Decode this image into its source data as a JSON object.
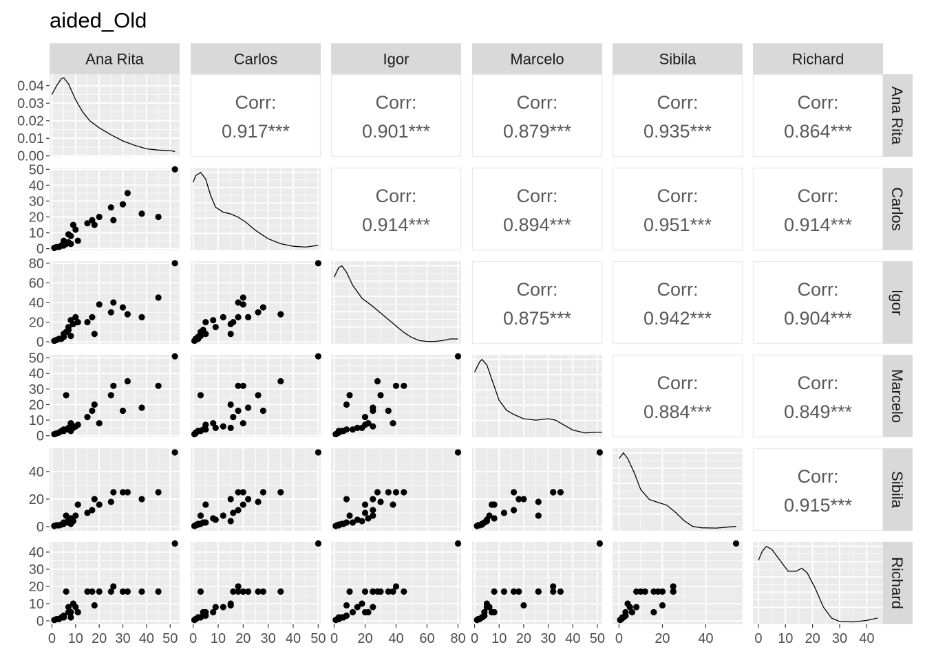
{
  "title": "aided_Old",
  "variables": [
    "Ana Rita",
    "Carlos",
    "Igor",
    "Marcelo",
    "Sibila",
    "Richard"
  ],
  "corr_label": "Corr:",
  "chart_data": {
    "type": "scatter-matrix",
    "title": "aided_Old",
    "upper_panels": "correlation",
    "diagonal_panels": "density",
    "lower_panels": "scatter",
    "background": "#EBEBEB",
    "grid": true,
    "correlations": [
      {
        "row": "Ana Rita",
        "col": "Carlos",
        "label": "0.917***"
      },
      {
        "row": "Ana Rita",
        "col": "Igor",
        "label": "0.901***"
      },
      {
        "row": "Ana Rita",
        "col": "Marcelo",
        "label": "0.879***"
      },
      {
        "row": "Ana Rita",
        "col": "Sibila",
        "label": "0.935***"
      },
      {
        "row": "Ana Rita",
        "col": "Richard",
        "label": "0.864***"
      },
      {
        "row": "Carlos",
        "col": "Igor",
        "label": "0.914***"
      },
      {
        "row": "Carlos",
        "col": "Marcelo",
        "label": "0.894***"
      },
      {
        "row": "Carlos",
        "col": "Sibila",
        "label": "0.951***"
      },
      {
        "row": "Carlos",
        "col": "Richard",
        "label": "0.914***"
      },
      {
        "row": "Igor",
        "col": "Marcelo",
        "label": "0.875***"
      },
      {
        "row": "Igor",
        "col": "Sibila",
        "label": "0.942***"
      },
      {
        "row": "Igor",
        "col": "Richard",
        "label": "0.904***"
      },
      {
        "row": "Marcelo",
        "col": "Sibila",
        "label": "0.884***"
      },
      {
        "row": "Marcelo",
        "col": "Richard",
        "label": "0.849***"
      },
      {
        "row": "Sibila",
        "col": "Richard",
        "label": "0.915***"
      }
    ],
    "x_axes": {
      "Ana Rita": {
        "range": [
          -1,
          54
        ],
        "ticks": [
          0,
          10,
          20,
          30,
          40,
          50
        ]
      },
      "Carlos": {
        "range": [
          -1,
          51
        ],
        "ticks": [
          0,
          10,
          20,
          30,
          40,
          50
        ]
      },
      "Igor": {
        "range": [
          -2,
          82
        ],
        "ticks": [
          0,
          20,
          40,
          60,
          80
        ]
      },
      "Marcelo": {
        "range": [
          -1,
          52
        ],
        "ticks": [
          0,
          10,
          20,
          30,
          40,
          50
        ]
      },
      "Sibila": {
        "range": [
          -3,
          57
        ],
        "ticks": [
          0,
          20,
          40
        ]
      },
      "Richard": {
        "range": [
          -2,
          46
        ],
        "ticks": [
          0,
          10,
          20,
          30,
          40
        ]
      }
    },
    "y_axes": {
      "Ana Rita": {
        "range": [
          -0.0005,
          0.0465
        ],
        "ticks": [
          0.0,
          0.01,
          0.02,
          0.03,
          0.04
        ],
        "tick_labels": [
          "0.00",
          "0.01",
          "0.02",
          "0.03",
          "0.04"
        ]
      },
      "Carlos": {
        "range": [
          -1,
          51
        ],
        "ticks": [
          0,
          10,
          20,
          30,
          40,
          50
        ]
      },
      "Igor": {
        "range": [
          -2,
          82
        ],
        "ticks": [
          0,
          20,
          40,
          60,
          80
        ]
      },
      "Marcelo": {
        "range": [
          -1,
          52
        ],
        "ticks": [
          0,
          10,
          20,
          30,
          40,
          50
        ]
      },
      "Sibila": {
        "range": [
          -3,
          57
        ],
        "ticks": [
          0,
          20,
          40
        ]
      },
      "Richard": {
        "range": [
          -2,
          46
        ],
        "ticks": [
          0,
          10,
          20,
          30,
          40
        ]
      }
    },
    "observations": {
      "Ana Rita": [
        1,
        2,
        3,
        4,
        5,
        5,
        6,
        7,
        7,
        8,
        8,
        9,
        10,
        11,
        15,
        17,
        18,
        20,
        25,
        26,
        30,
        32,
        38,
        45,
        52
      ],
      "Carlos": [
        0.5,
        1,
        1,
        2,
        2,
        5,
        3,
        4,
        9,
        3,
        8,
        15,
        12,
        5,
        16,
        18,
        15,
        20,
        26,
        18,
        28,
        35,
        22,
        20,
        50
      ],
      "Igor": [
        1,
        2,
        3,
        3,
        5,
        8,
        10,
        12,
        15,
        6,
        22,
        18,
        25,
        20,
        20,
        25,
        8,
        38,
        30,
        40,
        35,
        28,
        25,
        45,
        80
      ],
      "Marcelo": [
        1,
        1.5,
        2,
        3,
        3,
        4,
        26,
        4,
        5,
        3,
        8,
        5,
        6,
        7,
        12,
        16,
        20,
        8,
        26,
        32,
        16,
        35,
        18,
        32,
        51
      ],
      "Sibila": [
        0.5,
        1,
        1,
        1.5,
        2,
        3,
        8,
        3,
        5,
        2,
        6,
        4,
        8,
        16,
        10,
        12,
        20,
        16,
        18,
        25,
        25,
        25,
        20,
        25,
        54
      ],
      "Richard": [
        0.5,
        1,
        1,
        2,
        2,
        3,
        17,
        5,
        8,
        2,
        5,
        10,
        8,
        5,
        17,
        17,
        9,
        17,
        17,
        20,
        17,
        17,
        17,
        17,
        45
      ]
    },
    "densities": {
      "Ana Rita": [
        [
          0,
          0.035
        ],
        [
          2,
          0.04
        ],
        [
          4,
          0.044
        ],
        [
          5,
          0.0445
        ],
        [
          7,
          0.041
        ],
        [
          10,
          0.032
        ],
        [
          13,
          0.025
        ],
        [
          16,
          0.02
        ],
        [
          20,
          0.016
        ],
        [
          25,
          0.012
        ],
        [
          30,
          0.0085
        ],
        [
          35,
          0.006
        ],
        [
          40,
          0.004
        ],
        [
          45,
          0.0033
        ],
        [
          50,
          0.003
        ],
        [
          52,
          0.0025
        ]
      ],
      "Carlos": [
        [
          0,
          0.04
        ],
        [
          1,
          0.044
        ],
        [
          3,
          0.046
        ],
        [
          5,
          0.042
        ],
        [
          7,
          0.032
        ],
        [
          9,
          0.025
        ],
        [
          12,
          0.022
        ],
        [
          15,
          0.021
        ],
        [
          18,
          0.019
        ],
        [
          21,
          0.016
        ],
        [
          25,
          0.011
        ],
        [
          30,
          0.006
        ],
        [
          35,
          0.003
        ],
        [
          40,
          0.0015
        ],
        [
          45,
          0.001
        ],
        [
          50,
          0.002
        ]
      ],
      "Igor": [
        [
          0,
          0.04
        ],
        [
          3,
          0.046
        ],
        [
          5,
          0.047
        ],
        [
          8,
          0.043
        ],
        [
          12,
          0.035
        ],
        [
          18,
          0.027
        ],
        [
          25,
          0.022
        ],
        [
          30,
          0.018
        ],
        [
          35,
          0.014
        ],
        [
          40,
          0.01
        ],
        [
          45,
          0.006
        ],
        [
          50,
          0.003
        ],
        [
          55,
          0.001
        ],
        [
          60,
          0.0005
        ],
        [
          65,
          0.0005
        ],
        [
          70,
          0.001
        ],
        [
          75,
          0.002
        ],
        [
          80,
          0.002
        ]
      ],
      "Marcelo": [
        [
          0,
          0.045
        ],
        [
          2,
          0.052
        ],
        [
          3,
          0.054
        ],
        [
          5,
          0.05
        ],
        [
          8,
          0.035
        ],
        [
          10,
          0.025
        ],
        [
          13,
          0.018
        ],
        [
          16,
          0.015
        ],
        [
          20,
          0.012
        ],
        [
          25,
          0.011
        ],
        [
          30,
          0.012
        ],
        [
          33,
          0.011
        ],
        [
          36,
          0.008
        ],
        [
          40,
          0.004
        ],
        [
          45,
          0.002
        ],
        [
          50,
          0.0025
        ],
        [
          52,
          0.0025
        ]
      ],
      "Sibila": [
        [
          0,
          0.05
        ],
        [
          2,
          0.054
        ],
        [
          4,
          0.05
        ],
        [
          7,
          0.04
        ],
        [
          10,
          0.028
        ],
        [
          14,
          0.021
        ],
        [
          18,
          0.019
        ],
        [
          22,
          0.017
        ],
        [
          26,
          0.012
        ],
        [
          30,
          0.006
        ],
        [
          34,
          0.002
        ],
        [
          38,
          0.001
        ],
        [
          45,
          0.0008
        ],
        [
          50,
          0.0015
        ],
        [
          54,
          0.002
        ]
      ],
      "Richard": [
        [
          0,
          0.04
        ],
        [
          1.5,
          0.046
        ],
        [
          3,
          0.049
        ],
        [
          5,
          0.047
        ],
        [
          8,
          0.04
        ],
        [
          11,
          0.033
        ],
        [
          14,
          0.033
        ],
        [
          16,
          0.035
        ],
        [
          18,
          0.032
        ],
        [
          21,
          0.022
        ],
        [
          24,
          0.01
        ],
        [
          27,
          0.003
        ],
        [
          30,
          0.0008
        ],
        [
          35,
          0.0005
        ],
        [
          40,
          0.0015
        ],
        [
          44,
          0.003
        ]
      ]
    }
  }
}
